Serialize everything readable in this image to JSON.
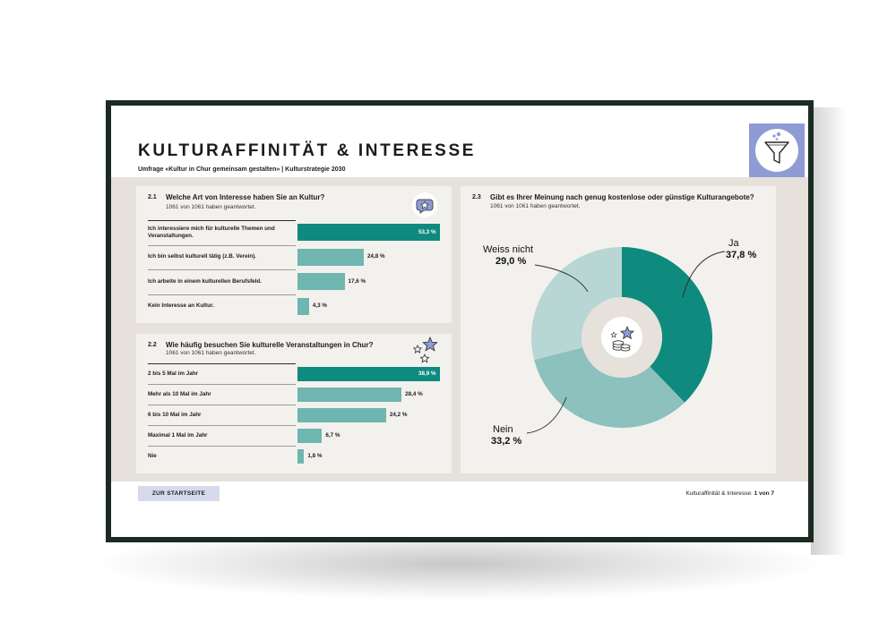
{
  "page": {
    "title": "KULTURAFFINITÄT & INTERESSE",
    "subtitle": "Umfrage «Kultur in Chur gemeinsam gestalten» | Kulturstrategie 2030"
  },
  "colors": {
    "teal_dark": "#0f8a7e",
    "teal_mid": "#6fb5b0",
    "teal_light": "#b7d6d4",
    "lavender": "#8f9bd3",
    "panel_bg": "#f3f1ee",
    "content_bg": "#e6e1da"
  },
  "icons": {
    "filter": "filter-funnel-icon",
    "q1": "star-speech-bubble-icon",
    "q2": "stars-icon",
    "q3": "coins-star-icon"
  },
  "q1": {
    "number": "2.1",
    "title": "Welche Art von Interesse haben Sie an Kultur?",
    "note": "1061 von 1061 haben geantwortet."
  },
  "q2": {
    "number": "2.2",
    "title": "Wie häufig besuchen Sie kulturelle Veranstaltungen in Chur?",
    "note": "1061 von 1061 haben geantwortet."
  },
  "q3": {
    "number": "2.3",
    "title": "Gibt es Ihrer Meinung nach genug kostenlose oder günstige Kulturangebote?",
    "note": "1061 von 1061 haben geantwortet."
  },
  "chart_data": [
    {
      "type": "bar",
      "orientation": "horizontal",
      "categories": [
        "Ich interessiere mich für kulturelle Themen und Veranstaltungen.",
        "Ich bin selbst kulturell tätig (z.B. Verein).",
        "Ich arbeite in einem kulturellen Berufsfeld.",
        "Kein Interesse an Kultur."
      ],
      "values": [
        53.3,
        24.8,
        17.6,
        4.3
      ],
      "value_labels": [
        "53,3 %",
        "24,8 %",
        "17,6 %",
        "4,3 %"
      ],
      "xlim": [
        0,
        53.3
      ]
    },
    {
      "type": "bar",
      "orientation": "horizontal",
      "categories": [
        "2 bis 5 Mal im Jahr",
        "Mehr als 10 Mal im Jahr",
        "6 bis 10 Mal im Jahr",
        "Maximal 1 Mal im Jahr",
        "Nie"
      ],
      "values": [
        38.9,
        28.4,
        24.2,
        6.7,
        1.8
      ],
      "value_labels": [
        "38,9 %",
        "28,4 %",
        "24,2 %",
        "6,7 %",
        "1,8 %"
      ],
      "xlim": [
        0,
        38.9
      ]
    },
    {
      "type": "pie",
      "donut": true,
      "slices": [
        {
          "label": "Ja",
          "value": 37.8,
          "value_label": "37,8 %",
          "color": "#0f8a7e"
        },
        {
          "label": "Nein",
          "value": 33.2,
          "value_label": "33,2 %",
          "color": "#8cc1bd"
        },
        {
          "label": "Weiss nicht",
          "value": 29.0,
          "value_label": "29,0 %",
          "color": "#b7d6d4"
        }
      ]
    }
  ],
  "footer": {
    "home_button": "ZUR STARTSEITE",
    "page_label": "Kulturaffinität & Interesse:",
    "page_count": "1 von 7"
  }
}
